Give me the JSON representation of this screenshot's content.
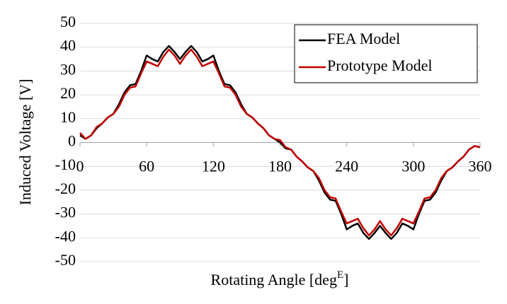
{
  "chart_data": {
    "type": "line",
    "ylabel": "Induced Voltage [V]",
    "xlabel_parts": [
      "Rotating Angle [deg",
      "E",
      "]"
    ],
    "x": [
      0,
      5,
      10,
      15,
      20,
      25,
      30,
      35,
      40,
      45,
      50,
      55,
      60,
      65,
      70,
      75,
      80,
      85,
      90,
      95,
      100,
      105,
      110,
      115,
      120,
      125,
      130,
      135,
      140,
      145,
      150,
      155,
      160,
      165,
      170,
      175,
      180,
      185,
      190,
      195,
      200,
      205,
      210,
      215,
      220,
      225,
      230,
      235,
      240,
      245,
      250,
      255,
      260,
      265,
      270,
      275,
      280,
      285,
      290,
      295,
      300,
      305,
      310,
      315,
      320,
      325,
      330,
      335,
      340,
      345,
      350,
      355,
      360
    ],
    "series": [
      {
        "name": "FEA Model",
        "color": "#000000",
        "values": [
          3,
          1.5,
          3,
          6,
          8,
          10.5,
          12,
          16,
          21,
          24,
          24.5,
          30,
          36.5,
          35,
          34,
          38,
          40.5,
          38,
          35,
          38,
          40.5,
          38,
          34,
          35,
          36.5,
          30,
          24.5,
          24,
          21,
          16,
          12,
          10.5,
          8,
          6,
          3,
          1.5,
          0,
          -2.5,
          -3,
          -6,
          -8,
          -10.5,
          -12,
          -16,
          -21,
          -24,
          -24.5,
          -30,
          -36.5,
          -35,
          -34,
          -38,
          -40.5,
          -38,
          -35,
          -38,
          -40.5,
          -38,
          -34,
          -35,
          -36.5,
          -30,
          -24.5,
          -24,
          -21,
          -16,
          -12,
          -10.5,
          -8,
          -6,
          -3,
          -1.5,
          -2
        ]
      },
      {
        "name": "Prototype Model",
        "color": "#c00000",
        "values": [
          4,
          1.5,
          3,
          6.5,
          8,
          10.5,
          12,
          15,
          20,
          23,
          23.5,
          29,
          34,
          33,
          32,
          36,
          39,
          36.5,
          33,
          36.5,
          39,
          36,
          32,
          33,
          34,
          29,
          23.5,
          23,
          20,
          15,
          12,
          10.5,
          8,
          6,
          3,
          1.5,
          1,
          -2,
          -3,
          -6,
          -8,
          -10.5,
          -12,
          -15,
          -20,
          -23,
          -23.5,
          -29,
          -34,
          -33,
          -32,
          -36,
          -39,
          -36.5,
          -33,
          -36.5,
          -39,
          -36,
          -32,
          -33,
          -34,
          -29,
          -23.5,
          -23,
          -20,
          -15,
          -12,
          -10.5,
          -8,
          -6,
          -3,
          -1.5,
          -2
        ]
      }
    ],
    "xlim": [
      0,
      360
    ],
    "xticks": [
      0,
      60,
      120,
      180,
      240,
      300,
      360
    ],
    "ylim": [
      -50,
      50
    ],
    "yticks": [
      -50,
      -40,
      -30,
      -20,
      -10,
      0,
      10,
      20,
      30,
      40,
      50
    ],
    "grid": true,
    "legend": "upper right"
  }
}
